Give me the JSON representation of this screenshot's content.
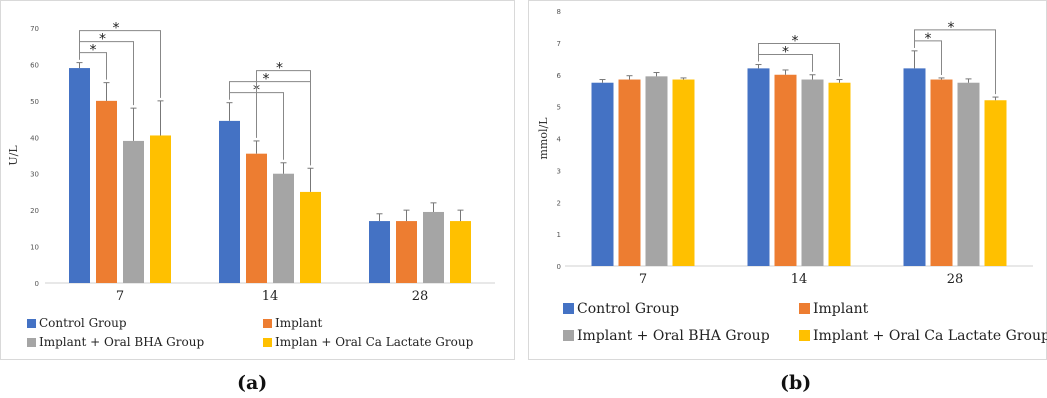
{
  "chart_data": [
    {
      "type": "bar",
      "panel_label": "(a)",
      "ylabel": "U/L",
      "categories": [
        "7",
        "14",
        "28"
      ],
      "ylim": [
        0,
        70
      ],
      "yticks": [
        0,
        10,
        20,
        30,
        40,
        50,
        60,
        70
      ],
      "grid": false,
      "legend_position": "bottom",
      "series": [
        {
          "name": "Control Group",
          "color": "#4472C4",
          "values": [
            59,
            44.5,
            17
          ],
          "errors": [
            1.5,
            5,
            2
          ]
        },
        {
          "name": "Implant",
          "color": "#ED7D31",
          "values": [
            50,
            35.5,
            17
          ],
          "errors": [
            5,
            3.5,
            3
          ]
        },
        {
          "name": "Implant +  Oral BHA Group",
          "color": "#A5A5A5",
          "values": [
            39,
            30,
            19.5
          ],
          "errors": [
            9,
            3,
            2.5
          ]
        },
        {
          "name": "Implan + Oral Ca Lactate Group",
          "color": "#FFC000",
          "values": [
            40.5,
            25,
            17
          ],
          "errors": [
            9.5,
            6.5,
            3
          ]
        }
      ],
      "significance": [
        {
          "group": 0,
          "from": 0,
          "to": 1,
          "label": "*"
        },
        {
          "group": 0,
          "from": 0,
          "to": 2,
          "label": "*"
        },
        {
          "group": 0,
          "from": 0,
          "to": 3,
          "label": "*"
        },
        {
          "group": 1,
          "from": 0,
          "to": 2,
          "label": "*"
        },
        {
          "group": 1,
          "from": 0,
          "to": 3,
          "label": "*"
        },
        {
          "group": 1,
          "from": 1,
          "to": 3,
          "label": "*"
        }
      ]
    },
    {
      "type": "bar",
      "panel_label": "(b)",
      "ylabel": "mmol/L",
      "categories": [
        "7",
        "14",
        "28"
      ],
      "ylim": [
        0,
        8
      ],
      "yticks": [
        0,
        1,
        2,
        3,
        4,
        5,
        6,
        7,
        8
      ],
      "grid": false,
      "legend_position": "bottom",
      "series": [
        {
          "name": "Control Group",
          "color": "#4472C4",
          "values": [
            5.75,
            6.2,
            6.2
          ],
          "errors": [
            0.1,
            0.12,
            0.55
          ]
        },
        {
          "name": "Implant",
          "color": "#ED7D31",
          "values": [
            5.85,
            6.0,
            5.85
          ],
          "errors": [
            0.12,
            0.15,
            0.05
          ]
        },
        {
          "name": "Implant +  Oral BHA Group",
          "color": "#A5A5A5",
          "values": [
            5.95,
            5.85,
            5.75
          ],
          "errors": [
            0.12,
            0.15,
            0.12
          ]
        },
        {
          "name": "Implant + Oral Ca Lactate Group",
          "color": "#FFC000",
          "values": [
            5.85,
            5.75,
            5.2
          ],
          "errors": [
            0.05,
            0.1,
            0.1
          ]
        }
      ],
      "significance": [
        {
          "group": 1,
          "from": 0,
          "to": 2,
          "label": "*"
        },
        {
          "group": 1,
          "from": 0,
          "to": 3,
          "label": "*"
        },
        {
          "group": 2,
          "from": 0,
          "to": 1,
          "label": "*"
        },
        {
          "group": 2,
          "from": 0,
          "to": 3,
          "label": "*"
        }
      ]
    }
  ]
}
